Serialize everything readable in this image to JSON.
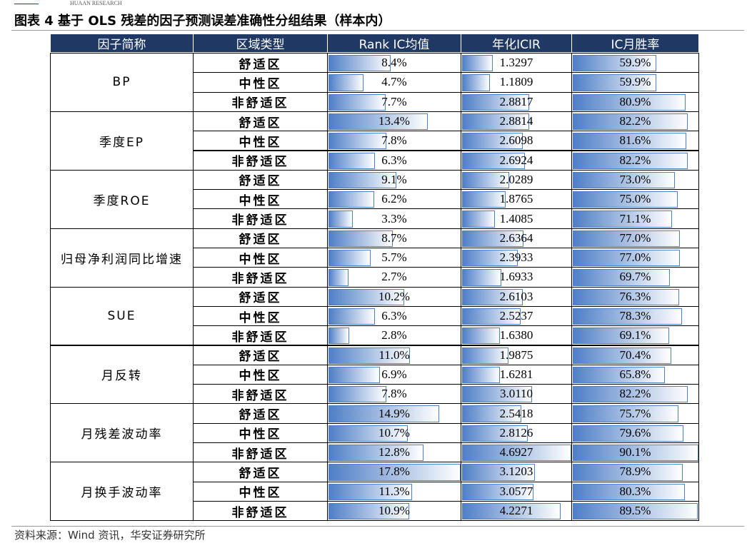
{
  "header": {
    "brand": "HUAAN RESEARCH",
    "title": "图表 4 基于 OLS 残差的因子预测误差准确性分组结果（样本内）"
  },
  "table": {
    "columns": [
      "因子简称",
      "区域类型",
      "Rank IC均值",
      "年化ICIR",
      "IC月胜率"
    ],
    "groups": [
      {
        "factor": "BP",
        "rows": [
          {
            "region": "舒适区",
            "rank_ic": 8.4,
            "rank_ic_label": "8.4%",
            "icir": 1.3297,
            "icir_label": "1.3297",
            "win_rate": 59.9,
            "win_rate_label": "59.9%"
          },
          {
            "region": "中性区",
            "rank_ic": 4.7,
            "rank_ic_label": "4.7%",
            "icir": 1.1809,
            "icir_label": "1.1809",
            "win_rate": 59.9,
            "win_rate_label": "59.9%"
          },
          {
            "region": "非舒适区",
            "rank_ic": 7.7,
            "rank_ic_label": "7.7%",
            "icir": 2.8817,
            "icir_label": "2.8817",
            "win_rate": 80.9,
            "win_rate_label": "80.9%"
          }
        ]
      },
      {
        "factor": "季度EP",
        "rows": [
          {
            "region": "舒适区",
            "rank_ic": 13.4,
            "rank_ic_label": "13.4%",
            "icir": 2.8814,
            "icir_label": "2.8814",
            "win_rate": 82.2,
            "win_rate_label": "82.2%"
          },
          {
            "region": "中性区",
            "rank_ic": 7.8,
            "rank_ic_label": "7.8%",
            "icir": 2.6098,
            "icir_label": "2.6098",
            "win_rate": 81.6,
            "win_rate_label": "81.6%"
          },
          {
            "region": "非舒适区",
            "rank_ic": 6.3,
            "rank_ic_label": "6.3%",
            "icir": 2.6924,
            "icir_label": "2.6924",
            "win_rate": 82.2,
            "win_rate_label": "82.2%"
          }
        ]
      },
      {
        "factor": "季度ROE",
        "rows": [
          {
            "region": "舒适区",
            "rank_ic": 9.1,
            "rank_ic_label": "9.1%",
            "icir": 2.0289,
            "icir_label": "2.0289",
            "win_rate": 73.0,
            "win_rate_label": "73.0%"
          },
          {
            "region": "中性区",
            "rank_ic": 6.2,
            "rank_ic_label": "6.2%",
            "icir": 1.8765,
            "icir_label": "1.8765",
            "win_rate": 75.0,
            "win_rate_label": "75.0%"
          },
          {
            "region": "非舒适区",
            "rank_ic": 3.3,
            "rank_ic_label": "3.3%",
            "icir": 1.4085,
            "icir_label": "1.4085",
            "win_rate": 71.1,
            "win_rate_label": "71.1%"
          }
        ]
      },
      {
        "factor": "归母净利润同比增速",
        "rows": [
          {
            "region": "舒适区",
            "rank_ic": 8.7,
            "rank_ic_label": "8.7%",
            "icir": 2.6364,
            "icir_label": "2.6364",
            "win_rate": 77.0,
            "win_rate_label": "77.0%"
          },
          {
            "region": "中性区",
            "rank_ic": 5.7,
            "rank_ic_label": "5.7%",
            "icir": 2.3933,
            "icir_label": "2.3933",
            "win_rate": 77.0,
            "win_rate_label": "77.0%"
          },
          {
            "region": "非舒适区",
            "rank_ic": 2.7,
            "rank_ic_label": "2.7%",
            "icir": 1.6933,
            "icir_label": "1.6933",
            "win_rate": 69.7,
            "win_rate_label": "69.7%"
          }
        ]
      },
      {
        "factor": "SUE",
        "rows": [
          {
            "region": "舒适区",
            "rank_ic": 10.2,
            "rank_ic_label": "10.2%",
            "icir": 2.6103,
            "icir_label": "2.6103",
            "win_rate": 76.3,
            "win_rate_label": "76.3%"
          },
          {
            "region": "中性区",
            "rank_ic": 6.3,
            "rank_ic_label": "6.3%",
            "icir": 2.5237,
            "icir_label": "2.5237",
            "win_rate": 78.3,
            "win_rate_label": "78.3%"
          },
          {
            "region": "非舒适区",
            "rank_ic": 2.8,
            "rank_ic_label": "2.8%",
            "icir": 1.638,
            "icir_label": "1.6380",
            "win_rate": 69.1,
            "win_rate_label": "69.1%"
          }
        ]
      },
      {
        "factor": "月反转",
        "rows": [
          {
            "region": "舒适区",
            "rank_ic": 11.0,
            "rank_ic_label": "11.0%",
            "icir": 1.9875,
            "icir_label": "1.9875",
            "win_rate": 70.4,
            "win_rate_label": "70.4%"
          },
          {
            "region": "中性区",
            "rank_ic": 6.9,
            "rank_ic_label": "6.9%",
            "icir": 1.6281,
            "icir_label": "1.6281",
            "win_rate": 65.8,
            "win_rate_label": "65.8%"
          },
          {
            "region": "非舒适区",
            "rank_ic": 7.8,
            "rank_ic_label": "7.8%",
            "icir": 3.011,
            "icir_label": "3.0110",
            "win_rate": 82.2,
            "win_rate_label": "82.2%"
          }
        ]
      },
      {
        "factor": "月残差波动率",
        "rows": [
          {
            "region": "舒适区",
            "rank_ic": 14.9,
            "rank_ic_label": "14.9%",
            "icir": 2.5418,
            "icir_label": "2.5418",
            "win_rate": 75.7,
            "win_rate_label": "75.7%"
          },
          {
            "region": "中性区",
            "rank_ic": 10.7,
            "rank_ic_label": "10.7%",
            "icir": 2.8126,
            "icir_label": "2.8126",
            "win_rate": 79.6,
            "win_rate_label": "79.6%"
          },
          {
            "region": "非舒适区",
            "rank_ic": 12.8,
            "rank_ic_label": "12.8%",
            "icir": 4.6927,
            "icir_label": "4.6927",
            "win_rate": 90.1,
            "win_rate_label": "90.1%"
          }
        ]
      },
      {
        "factor": "月换手波动率",
        "rows": [
          {
            "region": "舒适区",
            "rank_ic": 17.8,
            "rank_ic_label": "17.8%",
            "icir": 3.1203,
            "icir_label": "3.1203",
            "win_rate": 78.9,
            "win_rate_label": "78.9%"
          },
          {
            "region": "中性区",
            "rank_ic": 11.3,
            "rank_ic_label": "11.3%",
            "icir": 3.0577,
            "icir_label": "3.0577",
            "win_rate": 80.3,
            "win_rate_label": "80.3%"
          },
          {
            "region": "非舒适区",
            "rank_ic": 10.9,
            "rank_ic_label": "10.9%",
            "icir": 4.2271,
            "icir_label": "4.2271",
            "win_rate": 89.5,
            "win_rate_label": "89.5%"
          }
        ]
      }
    ]
  },
  "source": "资料来源：Wind 资讯，华安证券研究所"
}
